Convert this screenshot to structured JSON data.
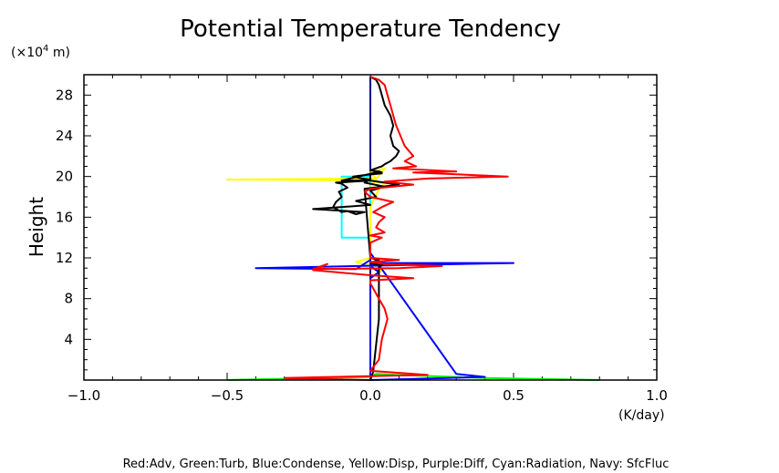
{
  "chart_data": {
    "type": "line",
    "title": "Potential Temperature Tendency",
    "ylabel": "Height",
    "y_unit_label": "(×10⁴ m)",
    "x_unit_label": "(K/day)",
    "xlim": [
      -1.0,
      1.0
    ],
    "ylim": [
      0,
      30
    ],
    "x_ticks": [
      -1.0,
      -0.5,
      0.0,
      0.5,
      1.0
    ],
    "x_tick_labels": [
      "−1.0",
      "−0.5",
      "0.0",
      "0.5",
      "1.0"
    ],
    "y_ticks": [
      4,
      8,
      12,
      16,
      20,
      24,
      28
    ],
    "y_tick_labels": [
      "4",
      "8",
      "12",
      "16",
      "20",
      "24",
      "28"
    ],
    "legend_text": "Red:Adv, Green:Turb, Blue:Condense, Yellow:Disp, Purple:Diff, Cyan:Radiation, Navy: SfcFluc",
    "grid": false,
    "series": [
      {
        "key": "zero",
        "color": "#000080",
        "x": [
          0.0,
          0.0
        ],
        "y": [
          0.0,
          29.8
        ]
      },
      {
        "key": "green",
        "color": "#00ff00",
        "x": [
          -0.5,
          0.0,
          0.02,
          0.1,
          0.4,
          0.8
        ],
        "y": [
          0.0,
          0.3,
          0.6,
          0.5,
          0.2,
          0.0
        ]
      },
      {
        "key": "cyan",
        "color": "#00ffff",
        "x": [
          0.0,
          -0.1,
          -0.1,
          -0.1,
          0.0,
          0.0,
          0.0
        ],
        "y": [
          14.0,
          14.0,
          17.0,
          20.0,
          20.0,
          19.5,
          14.0
        ]
      },
      {
        "key": "yellow",
        "color": "#ffff00",
        "x": [
          0.0,
          0.05,
          0.0,
          0.02,
          -0.5,
          0.0,
          0.05,
          0.03,
          0.0,
          0.0,
          -0.05,
          0.0,
          0.02,
          0.04,
          0.0
        ],
        "y": [
          19.0,
          20.8,
          20.4,
          19.8,
          19.7,
          19.6,
          19.3,
          18.8,
          17.0,
          12.0,
          11.6,
          11.2,
          10.9,
          10.8,
          10.0
        ]
      },
      {
        "key": "blue",
        "color": "#0000ff",
        "x": [
          0.0,
          0.0,
          0.03,
          0.01,
          0.0,
          0.01,
          0.0,
          0.5,
          -0.05,
          -0.4,
          -0.05,
          0.0,
          0.0,
          0.3,
          0.4,
          0.0
        ],
        "y": [
          0.5,
          10.0,
          10.6,
          11.0,
          11.3,
          11.4,
          11.5,
          11.5,
          11.2,
          11.0,
          10.9,
          11.8,
          12.5,
          0.6,
          0.3,
          0.0
        ]
      },
      {
        "key": "black",
        "color": "#000000",
        "x": [
          0.0,
          0.02,
          0.03,
          0.04,
          0.05,
          0.07,
          0.08,
          0.07,
          0.08,
          0.1,
          0.09,
          0.07,
          0.05,
          0.04,
          0.03,
          0.02,
          0.0,
          0.03,
          0.04,
          0.03,
          0.0,
          0.0,
          -0.12,
          -0.1,
          -0.08,
          -0.11,
          -0.1,
          -0.12,
          -0.13,
          -0.1,
          -0.08,
          -0.05,
          -0.02,
          -0.2,
          0.0,
          -0.05,
          0.02,
          0.0,
          0.05,
          -0.02,
          0.0,
          -0.03,
          -0.06,
          -0.03,
          0.0,
          0.04,
          0.02,
          -0.1,
          0.0,
          0.1,
          -0.02,
          0.0,
          0.03,
          0.02,
          0.0,
          0.04,
          0.03,
          0.03,
          0.01,
          0.0
        ],
        "y": [
          29.8,
          29.5,
          29.0,
          28.0,
          27.0,
          26.0,
          25.0,
          24.0,
          23.0,
          22.5,
          22.0,
          21.5,
          21.2,
          21.0,
          20.9,
          20.8,
          20.6,
          20.5,
          20.4,
          20.3,
          20.3,
          19.6,
          19.4,
          19.3,
          18.9,
          18.5,
          18.0,
          17.5,
          17.0,
          16.5,
          16.6,
          16.3,
          16.5,
          16.8,
          17.2,
          17.6,
          18.0,
          18.6,
          19.0,
          19.4,
          19.7,
          19.8,
          20.0,
          20.1,
          20.2,
          20.3,
          20.4,
          19.6,
          19.6,
          19.2,
          18.8,
          12.0,
          11.8,
          11.7,
          11.5,
          11.3,
          11.1,
          6.0,
          0.8,
          0.0
        ]
      },
      {
        "key": "red",
        "color": "#ff0000",
        "x": [
          0.0,
          0.03,
          0.05,
          0.06,
          0.07,
          0.08,
          0.09,
          0.12,
          0.15,
          0.12,
          0.16,
          0.08,
          0.3,
          0.15,
          0.48,
          0.2,
          0.05,
          0.15,
          0.0,
          -0.02,
          0.0,
          0.08,
          0.04,
          0.01,
          0.05,
          0.03,
          0.02,
          0.05,
          0.0,
          0.04,
          0.0,
          0.0,
          0.1,
          0.0,
          0.05,
          0.25,
          0.1,
          -0.2,
          -0.15,
          -0.2,
          0.0,
          0.15,
          0.0,
          0.0,
          0.03,
          0.05,
          0.06,
          0.04,
          0.03,
          0.0,
          0.2,
          -0.3,
          0.0
        ],
        "y": [
          29.8,
          29.5,
          29.0,
          28.0,
          27.0,
          26.0,
          25.0,
          23.0,
          22.0,
          21.5,
          21.0,
          20.8,
          20.5,
          20.4,
          20.0,
          19.8,
          19.5,
          19.2,
          18.8,
          18.5,
          18.0,
          17.5,
          17.0,
          16.5,
          16.0,
          15.5,
          15.0,
          14.5,
          14.2,
          14.0,
          13.5,
          12.0,
          11.8,
          11.6,
          11.4,
          11.2,
          11.0,
          10.9,
          11.4,
          10.8,
          10.3,
          10.0,
          9.8,
          9.5,
          8.0,
          7.0,
          6.0,
          4.0,
          2.0,
          0.9,
          0.5,
          0.2,
          0.0
        ]
      }
    ]
  }
}
